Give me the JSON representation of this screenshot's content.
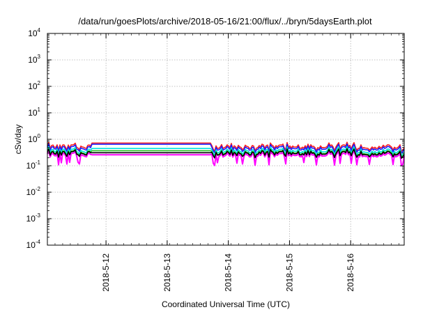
{
  "chart_data": {
    "type": "line",
    "title": "/data/run/goesPlots/archive/2018-05-16/21:00/flux/../bryn/5daysEarth.plot",
    "xlabel": "Coordinated Universal Time (UTC)",
    "ylabel": "cSv/day",
    "yscale": "log",
    "ylim": [
      0.0001,
      10000
    ],
    "xlim": [
      "2018-05-11 01:00",
      "2018-05-16 21:00"
    ],
    "grid": true,
    "y_tick_labels": [
      {
        "base": "10",
        "exp": "-4"
      },
      {
        "base": "10",
        "exp": "-3"
      },
      {
        "base": "10",
        "exp": "-2"
      },
      {
        "base": "10",
        "exp": "-1"
      },
      {
        "base": "10",
        "exp": "0"
      },
      {
        "base": "10",
        "exp": "1"
      },
      {
        "base": "10",
        "exp": "2"
      },
      {
        "base": "10",
        "exp": "3"
      },
      {
        "base": "10",
        "exp": "4"
      }
    ],
    "x_tick_labels": [
      "2018-5-12",
      "2018-5-13",
      "2018-5-14",
      "2018-5-15",
      "2018-5-16"
    ],
    "series": [
      {
        "color": "#ff00ff",
        "level": 0.25,
        "flat": 0.26,
        "dips": true
      },
      {
        "color": "#ff2020",
        "level": 0.52,
        "flat": 0.72,
        "dips": false
      },
      {
        "color": "#1a1aff",
        "level": 0.45,
        "flat": 0.65,
        "dips": false
      },
      {
        "color": "#00e0e0",
        "level": 0.36,
        "flat": 0.45,
        "dips": false
      },
      {
        "color": "#20c020",
        "level": 0.31,
        "flat": 0.37,
        "dips": false
      },
      {
        "color": "#000000",
        "level": 0.29,
        "flat": 0.31,
        "dips": false
      }
    ]
  }
}
